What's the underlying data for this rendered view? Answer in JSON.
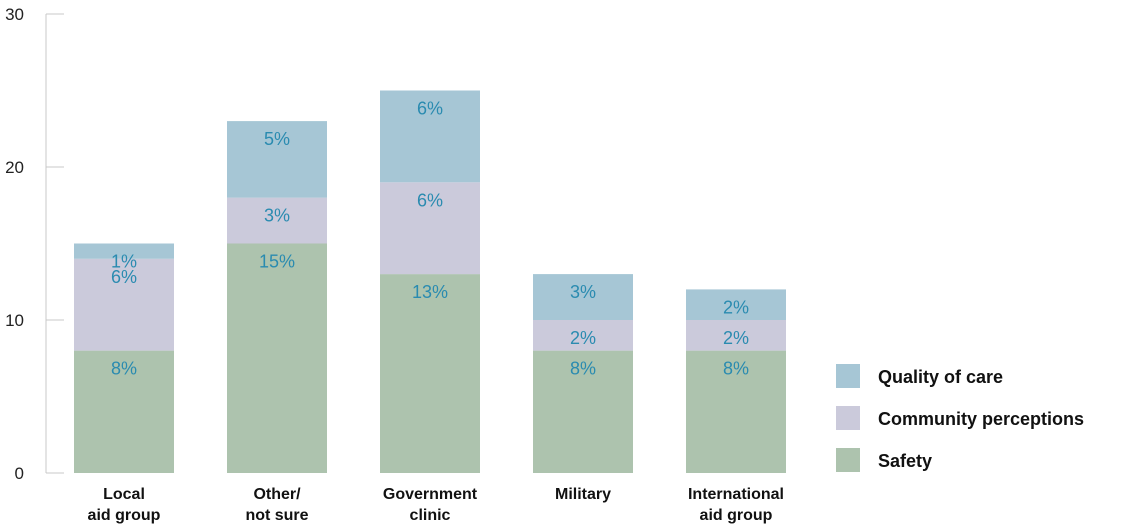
{
  "chart_data": {
    "type": "bar",
    "stacked": true,
    "categories": [
      [
        "Local",
        "aid group"
      ],
      [
        "Other/",
        "not sure"
      ],
      [
        "Government",
        "clinic"
      ],
      [
        "Military"
      ],
      [
        "International",
        "aid group"
      ]
    ],
    "series": [
      {
        "name": "Safety",
        "color": "#adc3ae",
        "values": [
          8,
          15,
          13,
          8,
          8
        ],
        "labels": [
          "8%",
          "15%",
          "13%",
          "8%",
          "8%"
        ]
      },
      {
        "name": "Community perceptions",
        "color": "#cbcadb",
        "values": [
          6,
          3,
          6,
          2,
          2
        ],
        "labels": [
          "6%",
          "3%",
          "6%",
          "2%",
          "2%"
        ]
      },
      {
        "name": "Quality of care",
        "color": "#a6c6d5",
        "values": [
          1,
          5,
          6,
          3,
          2
        ],
        "labels": [
          "1%",
          "5%",
          "6%",
          "3%",
          "2%"
        ]
      }
    ],
    "ylim": [
      0,
      30
    ],
    "yticks": [
      0,
      10,
      20,
      30
    ],
    "legend_position": "right",
    "legend_order": [
      "Quality of care",
      "Community perceptions",
      "Safety"
    ],
    "grid": false,
    "label_color": "#2a8bb0"
  }
}
